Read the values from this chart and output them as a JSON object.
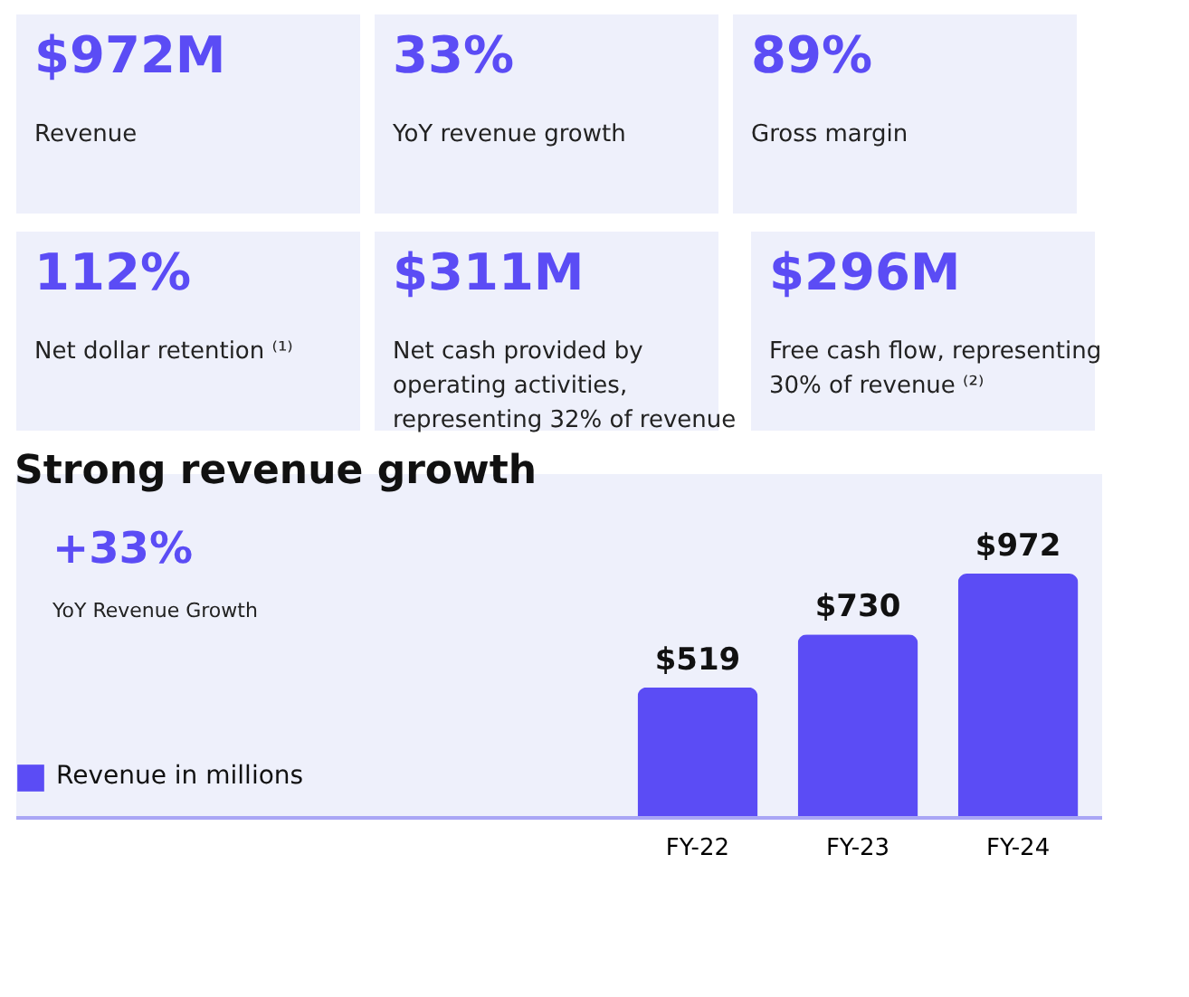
{
  "chart_data": [
    {
      "type": "other",
      "title": "$972M",
      "subtitle": "Revenue"
    },
    {
      "type": "other",
      "title": "33%",
      "subtitle": "YoY revenue growth"
    },
    {
      "type": "other",
      "title": "89%",
      "subtitle": "Gross margin"
    },
    {
      "type": "other",
      "title": "112%",
      "subtitle": "Net dollar retention ⁽¹⁾"
    },
    {
      "type": "other",
      "title": "$311M",
      "subtitle": "Net cash provided by\noperating activities,\nrepresenting 32% of revenue"
    },
    {
      "type": "other",
      "title": "$296M",
      "subtitle": "Free cash flow, representing\n30% of revenue ⁽²⁾"
    },
    {
      "type": "bar",
      "title": "Strong revenue growth",
      "annotations": [
        "+33%",
        "YoY Revenue Growth"
      ],
      "categories": [
        "FY-22",
        "FY-23",
        "FY-24"
      ],
      "series": [
        {
          "name": "Revenue in millions",
          "color": "#5b4cf5",
          "values": [
            519,
            730,
            972
          ],
          "value_labels": [
            "$519",
            "$730",
            "$972"
          ]
        }
      ],
      "legend": "bottom left",
      "tick_labels": "x",
      "grid": false
    }
  ]
}
